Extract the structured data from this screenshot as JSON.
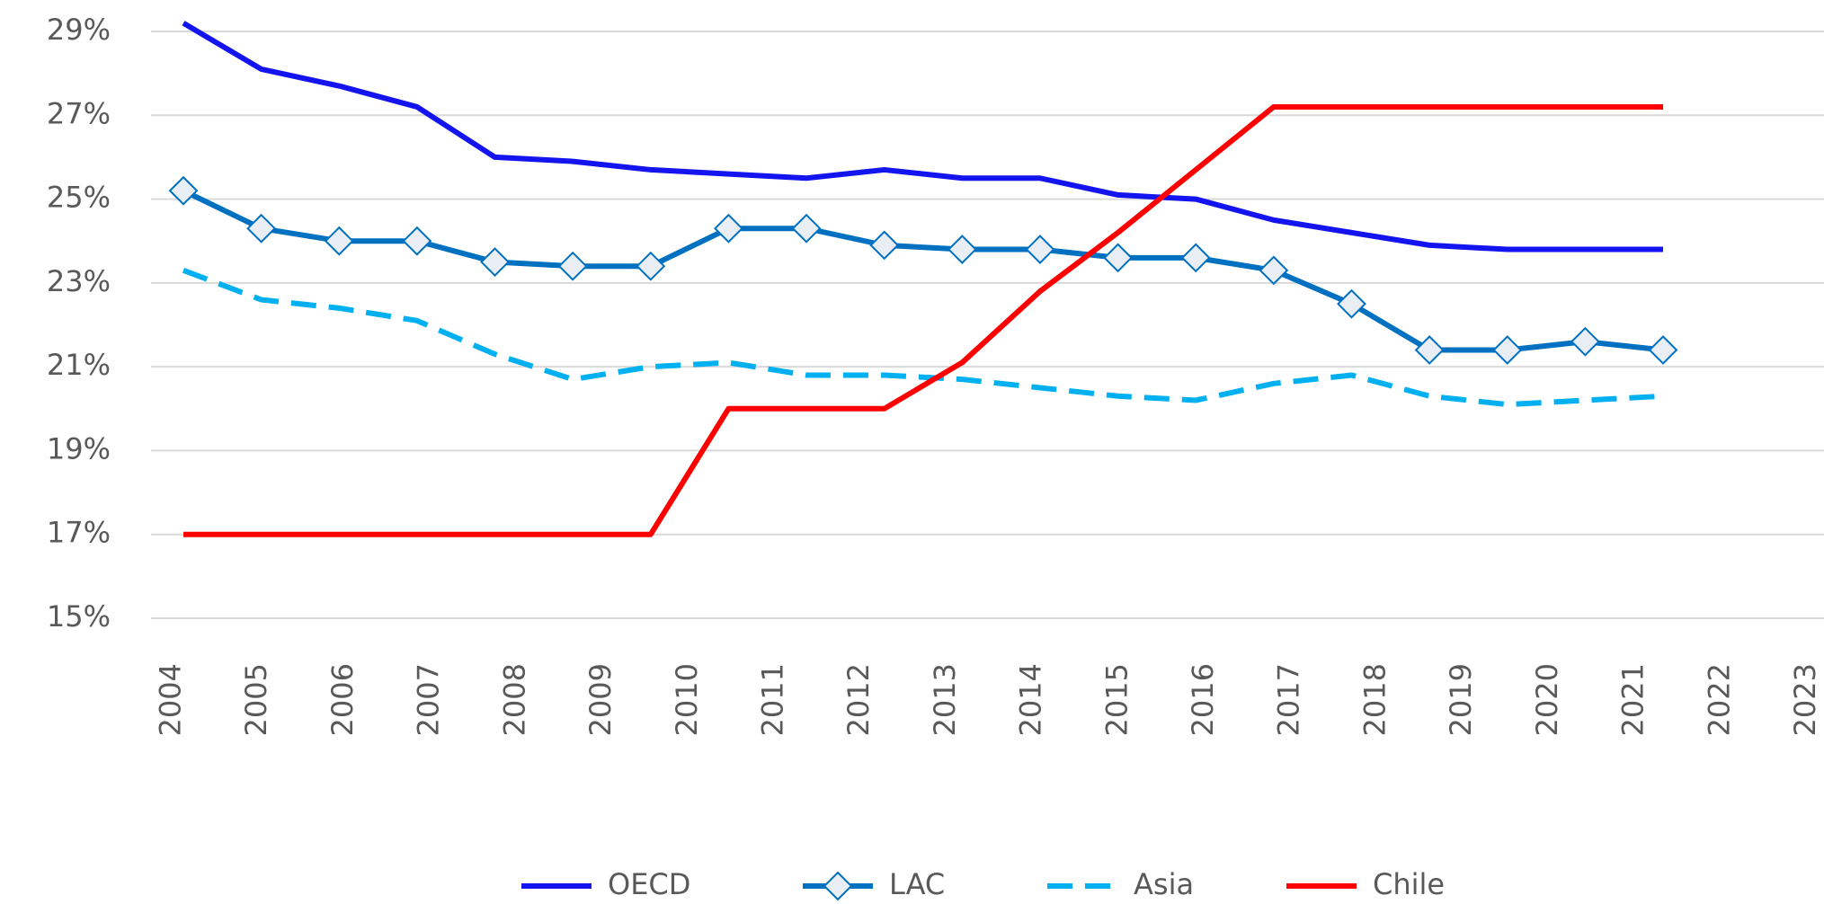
{
  "chart_data": {
    "type": "line",
    "categories": [
      "2004",
      "2005",
      "2006",
      "2007",
      "2008",
      "2009",
      "2010",
      "2011",
      "2012",
      "2013",
      "2014",
      "2015",
      "2016",
      "2017",
      "2018",
      "2019",
      "2020",
      "2021",
      "2022",
      "2023"
    ],
    "series": [
      {
        "name": "OECD",
        "color": "#1414f0",
        "style": "solid",
        "marker": false,
        "values": [
          29.2,
          28.1,
          27.7,
          27.2,
          26.0,
          25.9,
          25.7,
          25.6,
          25.5,
          25.7,
          25.5,
          25.5,
          25.1,
          25.0,
          24.5,
          24.2,
          23.9,
          23.8,
          23.8,
          23.8
        ]
      },
      {
        "name": "LAC",
        "color": "#0070c0",
        "style": "solid",
        "marker": true,
        "values": [
          25.2,
          24.3,
          24.0,
          24.0,
          23.5,
          23.4,
          23.4,
          24.3,
          24.3,
          23.9,
          23.8,
          23.8,
          23.6,
          23.6,
          23.3,
          22.5,
          21.4,
          21.4,
          21.6,
          21.4
        ]
      },
      {
        "name": "Asia",
        "color": "#00b0f0",
        "style": "dashed",
        "marker": false,
        "values": [
          23.3,
          22.6,
          22.4,
          22.1,
          21.3,
          20.7,
          21.0,
          21.1,
          20.8,
          20.8,
          20.7,
          20.5,
          20.3,
          20.2,
          20.6,
          20.8,
          20.3,
          20.1,
          20.2,
          20.3
        ]
      },
      {
        "name": "Chile",
        "color": "#ff0000",
        "style": "solid",
        "marker": false,
        "values": [
          17,
          17,
          17,
          17,
          17,
          17,
          17,
          20.0,
          20.0,
          20.0,
          21.1,
          22.8,
          24.2,
          25.7,
          27.2,
          27.2,
          27.2,
          27.2,
          27.2,
          27.2
        ]
      }
    ],
    "ylim": [
      15,
      29.3
    ],
    "yticks": [
      {
        "value": 15,
        "label": "15%"
      },
      {
        "value": 17,
        "label": "17%"
      },
      {
        "value": 19,
        "label": "19%"
      },
      {
        "value": 21,
        "label": "21%"
      },
      {
        "value": 23,
        "label": "23%"
      },
      {
        "value": 25,
        "label": "25%"
      },
      {
        "value": 27,
        "label": "27%"
      },
      {
        "value": 29,
        "label": "29%"
      }
    ],
    "grid": true,
    "legend": "bottom"
  }
}
